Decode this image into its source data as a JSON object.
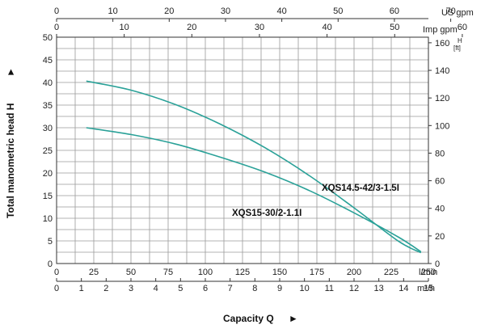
{
  "chart_data": {
    "type": "line",
    "title": "",
    "xlabel": "Capacity Q",
    "ylabel": "Total manometric head H",
    "xlabel_arrow": "►",
    "ylabel_arrow": "►",
    "xlim": [
      0,
      250
    ],
    "ylim": [
      0,
      50
    ],
    "grid": true,
    "axes": {
      "left": {
        "unit": "m",
        "range": [
          0,
          50
        ],
        "ticks": [
          0,
          5,
          10,
          15,
          20,
          25,
          30,
          35,
          40,
          45,
          50
        ]
      },
      "right": {
        "unit_top": "H",
        "unit_bottom": "[ft]",
        "range": [
          0,
          164.04
        ],
        "ticks": [
          0,
          20,
          40,
          60,
          80,
          100,
          120,
          140,
          160
        ]
      },
      "bottom_lmin": {
        "unit": "l/min",
        "range": [
          0,
          250
        ],
        "ticks": [
          0,
          25,
          50,
          75,
          100,
          125,
          150,
          175,
          200,
          225,
          250
        ]
      },
      "bottom_m3h": {
        "unit": "m³/h",
        "range": [
          0,
          15
        ],
        "ticks": [
          0,
          1,
          2,
          3,
          4,
          5,
          6,
          7,
          8,
          9,
          10,
          11,
          12,
          13,
          14,
          15
        ]
      },
      "top_usgpm": {
        "unit": "US gpm",
        "range": [
          0,
          66.04
        ],
        "ticks": [
          0,
          10,
          20,
          30,
          40,
          50,
          60,
          70
        ]
      },
      "top_impgpm": {
        "unit": "Imp gpm",
        "range": [
          0,
          54.99
        ],
        "ticks": [
          0,
          10,
          20,
          30,
          40,
          50,
          60
        ]
      }
    },
    "series": [
      {
        "name": "XQS14.5-42/3-1.5I",
        "color": "#2aa198",
        "x": [
          20,
          50,
          80,
          110,
          140,
          170,
          200,
          230,
          245
        ],
        "y": [
          40.3,
          38.3,
          35.1,
          30.8,
          25.6,
          19.4,
          12.3,
          4.9,
          2.4
        ]
      },
      {
        "name": "XQS15-30/2-1.1I",
        "color": "#2aa198",
        "x": [
          20,
          50,
          80,
          110,
          140,
          170,
          200,
          230,
          245
        ],
        "y": [
          30.0,
          28.5,
          26.4,
          23.5,
          20.2,
          16.1,
          11.2,
          5.8,
          2.6
        ]
      }
    ],
    "annotations": [
      {
        "text": "XQS14.5-42/3-1.5I",
        "series": 0
      },
      {
        "text": "XQS15-30/2-1.1I",
        "series": 1
      }
    ]
  }
}
